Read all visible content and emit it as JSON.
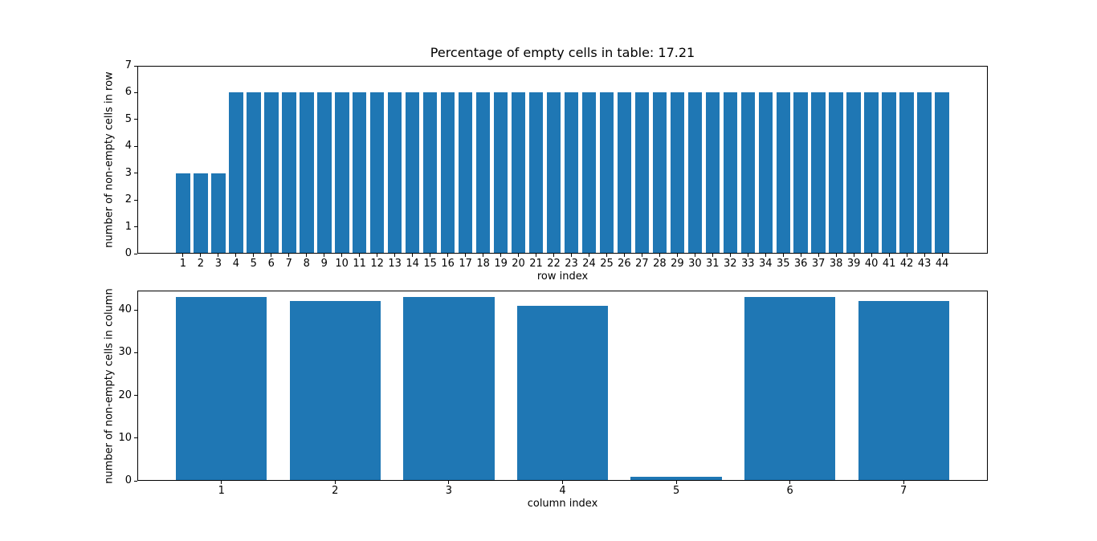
{
  "colors": {
    "bar": "#1f77b4",
    "spine": "#000000",
    "text": "#000000",
    "background": "#ffffff"
  },
  "chart_data": [
    {
      "type": "bar",
      "name": "row-chart",
      "title": "Percentage of empty cells in table: 17.21",
      "xlabel": "row index",
      "ylabel": "number of non-empty cells in row",
      "categories": [
        1,
        2,
        3,
        4,
        5,
        6,
        7,
        8,
        9,
        10,
        11,
        12,
        13,
        14,
        15,
        16,
        17,
        18,
        19,
        20,
        21,
        22,
        23,
        24,
        25,
        26,
        27,
        28,
        29,
        30,
        31,
        32,
        33,
        34,
        35,
        36,
        37,
        38,
        39,
        40,
        41,
        42,
        43,
        44
      ],
      "values": [
        3,
        3,
        3,
        6,
        6,
        6,
        6,
        6,
        6,
        6,
        6,
        6,
        6,
        6,
        6,
        6,
        6,
        6,
        6,
        6,
        6,
        6,
        6,
        6,
        6,
        6,
        6,
        6,
        6,
        6,
        6,
        6,
        6,
        6,
        6,
        6,
        6,
        6,
        6,
        6,
        6,
        6,
        6,
        6
      ],
      "bar_width": 0.8,
      "ylim": [
        0,
        7
      ],
      "yticks": [
        0,
        1,
        2,
        3,
        4,
        5,
        6,
        7
      ],
      "grid": false,
      "legend": false
    },
    {
      "type": "bar",
      "name": "column-chart",
      "title": "",
      "xlabel": "column index",
      "ylabel": "number of non-empty cells in column",
      "categories": [
        1,
        2,
        3,
        4,
        5,
        6,
        7
      ],
      "values": [
        43,
        42,
        43,
        41,
        1,
        43,
        42
      ],
      "bar_width": 0.8,
      "ylim": [
        0,
        44.5
      ],
      "yticks": [
        0,
        10,
        20,
        30,
        40
      ],
      "grid": false,
      "legend": false
    }
  ]
}
